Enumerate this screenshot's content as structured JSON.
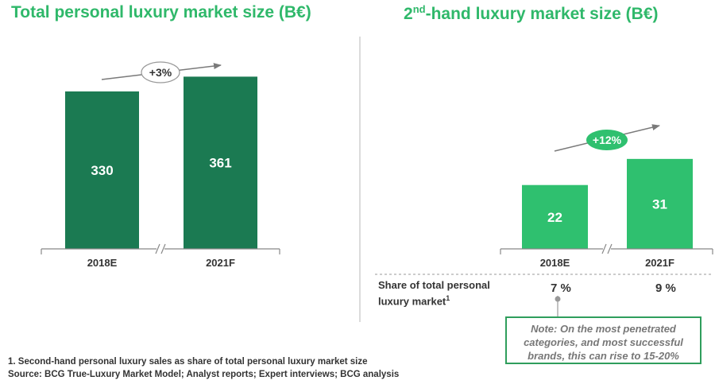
{
  "left_panel": {
    "title": "Total personal luxury market size (B€)"
  },
  "right_panel": {
    "title_sup": "nd",
    "title_prefix": "2",
    "title_rest": "-hand luxury market size (B€)",
    "share_label": "Share of total personal luxury market",
    "share_label_footnote": "1",
    "share_values": [
      "7 %",
      "9 %"
    ],
    "note": "Note: On the most penetrated categories, and most successful brands, this can rise to 15-20%"
  },
  "footnotes": {
    "note1": "1. Second-hand personal luxury sales as share of total personal luxury market size",
    "source": "Source: BCG True-Luxury Market Model; Analyst reports; Expert interviews; BCG analysis"
  },
  "colors": {
    "title_green": "#2fb86a",
    "dark_bar": "#1b7a52",
    "light_bar": "#2fc06f",
    "arrow": "#7a7a7a"
  },
  "chart_data": [
    {
      "type": "bar",
      "title": "Total personal luxury market size (B€)",
      "categories": [
        "2018E",
        "2021F"
      ],
      "values": [
        330,
        361
      ],
      "value_labels": [
        "330",
        "361"
      ],
      "growth_label": "+3%",
      "unit": "B€",
      "axis_break": true
    },
    {
      "type": "bar",
      "title": "2nd-hand luxury market size (B€)",
      "categories": [
        "2018E",
        "2021F"
      ],
      "values": [
        22,
        31
      ],
      "value_labels": [
        "22",
        "31"
      ],
      "growth_label": "+12%",
      "unit": "B€",
      "axis_break": true
    }
  ]
}
